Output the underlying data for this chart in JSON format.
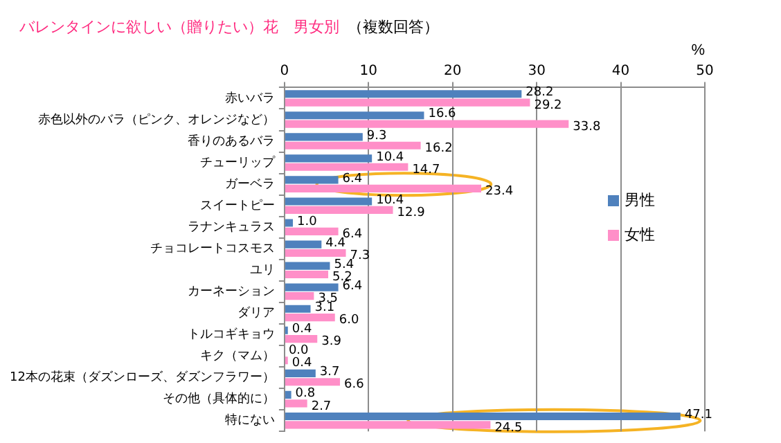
{
  "chart_data": {
    "type": "bar",
    "orientation": "horizontal",
    "title": "バレンタインに欲しい（贈りたい）花　男女別",
    "subtitle": "（複数回答）",
    "xlabel": "%",
    "categories": [
      "赤いバラ",
      "赤色以外のバラ（ピンク、オレンジなど）",
      "香りのあるバラ",
      "チューリップ",
      "ガーベラ",
      "スイートピー",
      "ラナンキュラス",
      "チョコレートコスモス",
      "ユリ",
      "カーネーション",
      "ダリア",
      "トルコギキョウ",
      "キク（マム）",
      "12本の花束（ダズンローズ、ダズンフラワー）",
      "その他（具体的に）",
      "特にない"
    ],
    "series": [
      {
        "name": "男性",
        "color": "#4f81bd",
        "values": [
          28.2,
          16.6,
          9.3,
          10.4,
          6.4,
          10.4,
          1.0,
          4.4,
          5.4,
          6.4,
          3.1,
          0.4,
          0.0,
          3.7,
          0.8,
          47.1
        ],
        "value_labels": [
          "28.2",
          "16.6",
          "9.3",
          "10.4",
          "6.4",
          "10.4",
          "1.0",
          "4.4",
          "5.4",
          "6.4",
          "3.1",
          "0.4",
          "0.0",
          "3.7",
          "0.8",
          "47.1"
        ]
      },
      {
        "name": "女性",
        "color": "#ff8fc8",
        "values": [
          29.2,
          33.8,
          16.2,
          14.7,
          23.4,
          12.9,
          6.4,
          7.3,
          5.2,
          3.5,
          6.0,
          3.9,
          0.4,
          6.6,
          2.7,
          24.5
        ],
        "value_labels": [
          "29.2",
          "33.8",
          "16.2",
          "14.7",
          "23.4",
          "12.9",
          "6.4",
          "7.3",
          "5.2",
          "3.5",
          "6.0",
          "3.9",
          "0.4",
          "6.6",
          "2.7",
          "24.5"
        ]
      }
    ],
    "xlim": [
      0,
      50
    ],
    "xticks": [
      0,
      10,
      20,
      30,
      40,
      50
    ],
    "grid": "x",
    "legend": "right"
  }
}
